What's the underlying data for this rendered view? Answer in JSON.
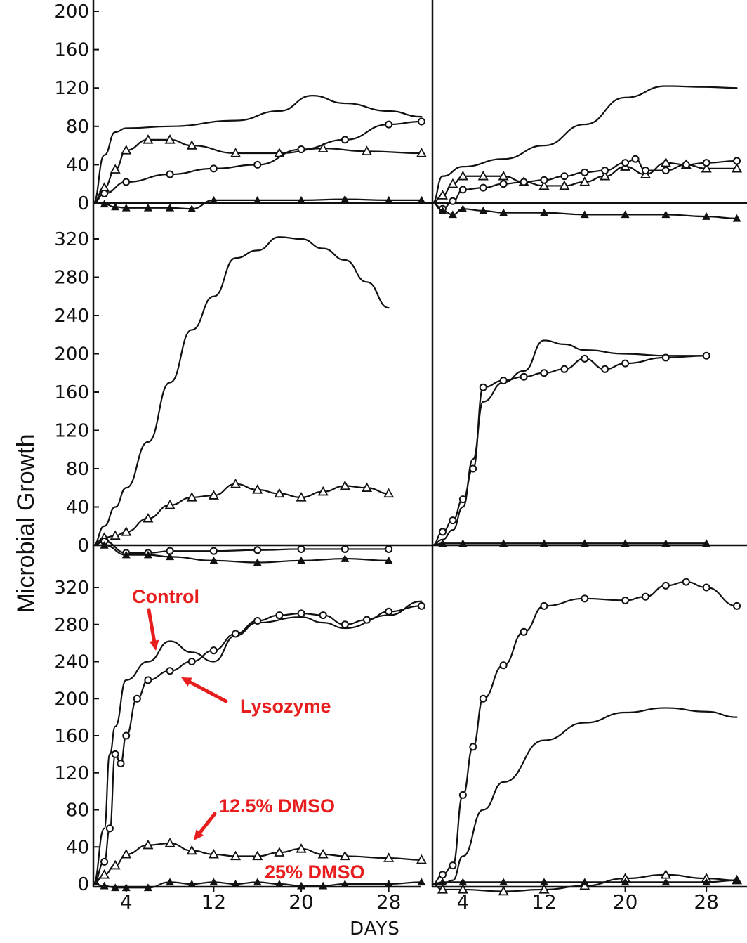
{
  "chart_data": [
    {
      "panel": "top-left",
      "type": "line",
      "ylim": [
        0,
        200
      ],
      "yticks": [
        "200",
        "160",
        "120",
        "80",
        "40",
        "0"
      ],
      "series": [
        {
          "marker": "none",
          "x": [
            1,
            2,
            3,
            4,
            8,
            14,
            18,
            21,
            24,
            28,
            31
          ],
          "y": [
            0,
            50,
            74,
            78,
            80,
            86,
            96,
            112,
            104,
            96,
            90
          ]
        },
        {
          "marker": "open-triangle",
          "x": [
            1,
            2,
            3,
            4,
            6,
            8,
            10,
            14,
            18,
            22,
            26,
            31
          ],
          "y": [
            0,
            16,
            35,
            55,
            66,
            66,
            60,
            52,
            52,
            57,
            54,
            52
          ]
        },
        {
          "marker": "open-circle",
          "x": [
            1,
            2,
            4,
            8,
            12,
            16,
            20,
            24,
            28,
            31
          ],
          "y": [
            0,
            10,
            22,
            30,
            36,
            40,
            56,
            66,
            82,
            85
          ]
        },
        {
          "marker": "filled-triangle",
          "x": [
            1,
            2,
            3,
            4,
            6,
            8,
            10,
            12,
            16,
            20,
            24,
            28,
            31
          ],
          "y": [
            0,
            -1,
            -4,
            -5,
            -5,
            -5,
            -6,
            3,
            3,
            3,
            4,
            3,
            3
          ]
        }
      ]
    },
    {
      "panel": "top-right",
      "type": "line",
      "ylim": [
        0,
        200
      ],
      "yticks": [],
      "series": [
        {
          "marker": "none",
          "x": [
            1,
            2,
            4,
            8,
            12,
            16,
            20,
            24,
            28,
            31
          ],
          "y": [
            0,
            28,
            38,
            46,
            60,
            82,
            110,
            122,
            121,
            120
          ]
        },
        {
          "marker": "open-triangle",
          "x": [
            1,
            2,
            3,
            4,
            6,
            8,
            10,
            12,
            14,
            16,
            18,
            20,
            22,
            24,
            26,
            28,
            31
          ],
          "y": [
            0,
            8,
            20,
            28,
            28,
            28,
            22,
            18,
            18,
            22,
            28,
            38,
            30,
            42,
            40,
            36,
            36
          ]
        },
        {
          "marker": "open-circle",
          "x": [
            1,
            2,
            3,
            4,
            6,
            8,
            10,
            12,
            14,
            16,
            18,
            20,
            21,
            22,
            24,
            26,
            28,
            31
          ],
          "y": [
            0,
            -6,
            2,
            14,
            16,
            20,
            22,
            24,
            28,
            32,
            34,
            42,
            46,
            34,
            34,
            40,
            42,
            44
          ]
        },
        {
          "marker": "filled-triangle",
          "x": [
            1,
            2,
            3,
            4,
            6,
            8,
            12,
            16,
            20,
            24,
            28,
            31
          ],
          "y": [
            0,
            -8,
            -12,
            -6,
            -8,
            -10,
            -10,
            -12,
            -12,
            -12,
            -14,
            -16
          ]
        }
      ]
    },
    {
      "panel": "middle-left",
      "type": "line",
      "ylim": [
        0,
        320
      ],
      "yticks": [
        "320",
        "280",
        "240",
        "200",
        "160",
        "120",
        "80",
        "40",
        "0"
      ],
      "series": [
        {
          "marker": "none",
          "x": [
            1,
            2,
            3,
            4,
            6,
            8,
            10,
            12,
            14,
            16,
            18,
            20,
            22,
            24,
            26,
            28
          ],
          "y": [
            0,
            20,
            40,
            60,
            108,
            170,
            225,
            260,
            300,
            308,
            322,
            320,
            310,
            298,
            275,
            248
          ]
        },
        {
          "marker": "open-triangle",
          "x": [
            1,
            2,
            3,
            4,
            6,
            8,
            10,
            12,
            14,
            16,
            18,
            20,
            22,
            24,
            26,
            28
          ],
          "y": [
            0,
            8,
            10,
            14,
            28,
            42,
            50,
            52,
            64,
            58,
            54,
            50,
            56,
            62,
            60,
            54
          ]
        },
        {
          "marker": "open-circle",
          "x": [
            1,
            2,
            4,
            6,
            8,
            12,
            16,
            20,
            24,
            28
          ],
          "y": [
            0,
            4,
            -8,
            -8,
            -6,
            -6,
            -5,
            -4,
            -4,
            -4
          ]
        },
        {
          "marker": "filled-triangle",
          "x": [
            1,
            2,
            4,
            6,
            8,
            12,
            16,
            20,
            24,
            28
          ],
          "y": [
            0,
            0,
            -10,
            -10,
            -12,
            -16,
            -18,
            -16,
            -14,
            -16
          ]
        }
      ]
    },
    {
      "panel": "middle-right",
      "type": "line",
      "ylim": [
        0,
        320
      ],
      "yticks": [],
      "series": [
        {
          "marker": "none",
          "x": [
            1,
            2,
            3,
            4,
            5,
            6,
            8,
            10,
            12,
            14,
            16,
            20,
            24,
            28
          ],
          "y": [
            0,
            6,
            16,
            40,
            90,
            150,
            170,
            182,
            214,
            210,
            204,
            200,
            198,
            198
          ]
        },
        {
          "marker": "open-circle",
          "x": [
            1,
            2,
            3,
            4,
            5,
            6,
            8,
            10,
            12,
            14,
            16,
            18,
            20,
            24,
            28
          ],
          "y": [
            0,
            14,
            26,
            48,
            80,
            165,
            172,
            176,
            180,
            184,
            195,
            184,
            190,
            196,
            198
          ]
        },
        {
          "marker": "filled-triangle",
          "x": [
            1,
            2,
            4,
            8,
            12,
            16,
            20,
            24,
            28
          ],
          "y": [
            0,
            2,
            2,
            2,
            2,
            2,
            2,
            2,
            2
          ]
        }
      ]
    },
    {
      "panel": "bottom-left",
      "type": "line",
      "ylim": [
        0,
        320
      ],
      "yticks": [
        "320",
        "280",
        "240",
        "200",
        "160",
        "120",
        "80",
        "40",
        "0"
      ],
      "annotations": [
        {
          "text": "Control",
          "target_series": 0
        },
        {
          "text": "Lysozyme",
          "target_series": 1
        },
        {
          "text": "12.5% DMSO",
          "target_series": 2
        },
        {
          "text": "25% DMSO",
          "target_series": 3
        }
      ],
      "annotation_color": "#e81e1e",
      "series": [
        {
          "marker": "none",
          "x": [
            1,
            2,
            2.5,
            3,
            4,
            6,
            8,
            10,
            12,
            14,
            16,
            20,
            22,
            24,
            28,
            31
          ],
          "y": [
            0,
            60,
            140,
            170,
            220,
            240,
            262,
            250,
            240,
            268,
            282,
            288,
            282,
            276,
            290,
            305
          ]
        },
        {
          "marker": "open-circle",
          "x": [
            1,
            2,
            2.5,
            3,
            3.5,
            4,
            5,
            6,
            8,
            10,
            12,
            14,
            16,
            18,
            20,
            22,
            24,
            26,
            28,
            31
          ],
          "y": [
            0,
            24,
            60,
            140,
            130,
            160,
            200,
            220,
            230,
            240,
            252,
            270,
            284,
            290,
            292,
            290,
            280,
            285,
            294,
            300
          ]
        },
        {
          "marker": "open-triangle",
          "x": [
            1,
            2,
            3,
            4,
            6,
            8,
            10,
            12,
            14,
            16,
            18,
            20,
            22,
            24,
            28,
            31
          ],
          "y": [
            0,
            10,
            20,
            32,
            42,
            44,
            36,
            32,
            30,
            30,
            34,
            38,
            32,
            30,
            28,
            26
          ]
        },
        {
          "marker": "filled-triangle",
          "x": [
            1,
            2,
            3,
            4,
            6,
            8,
            10,
            12,
            14,
            16,
            18,
            20,
            22,
            24,
            28,
            31
          ],
          "y": [
            0,
            -2,
            -4,
            -4,
            -4,
            2,
            0,
            2,
            0,
            2,
            0,
            -2,
            -2,
            0,
            0,
            2
          ]
        }
      ]
    },
    {
      "panel": "bottom-right",
      "type": "line",
      "ylim": [
        0,
        320
      ],
      "yticks": [],
      "series": [
        {
          "marker": "none",
          "x": [
            1,
            2,
            3,
            4,
            6,
            8,
            12,
            16,
            20,
            24,
            28,
            31
          ],
          "y": [
            0,
            0,
            4,
            30,
            80,
            110,
            155,
            174,
            185,
            190,
            186,
            180
          ]
        },
        {
          "marker": "open-circle",
          "x": [
            1,
            2,
            3,
            4,
            5,
            6,
            8,
            10,
            12,
            16,
            20,
            22,
            24,
            26,
            28,
            31
          ],
          "y": [
            0,
            10,
            20,
            96,
            148,
            200,
            236,
            272,
            300,
            308,
            306,
            310,
            322,
            326,
            320,
            300
          ]
        },
        {
          "marker": "open-triangle",
          "x": [
            1,
            2,
            4,
            8,
            12,
            16,
            20,
            24,
            28,
            31
          ],
          "y": [
            0,
            -6,
            -6,
            -8,
            -6,
            -2,
            6,
            10,
            6,
            4
          ]
        },
        {
          "marker": "filled-triangle",
          "x": [
            1,
            2,
            4,
            8,
            12,
            16,
            20,
            24,
            28,
            31
          ],
          "y": [
            0,
            2,
            2,
            2,
            2,
            2,
            2,
            2,
            2,
            4
          ]
        }
      ]
    }
  ],
  "xaxis": {
    "ticks": [
      4,
      12,
      20,
      28
    ],
    "tick_labels": [
      "4",
      "12",
      "20",
      "28"
    ],
    "xlim": [
      1,
      32
    ]
  },
  "labels": {
    "ylabel": "Microbial Growth",
    "xlabel": "DAYS"
  }
}
